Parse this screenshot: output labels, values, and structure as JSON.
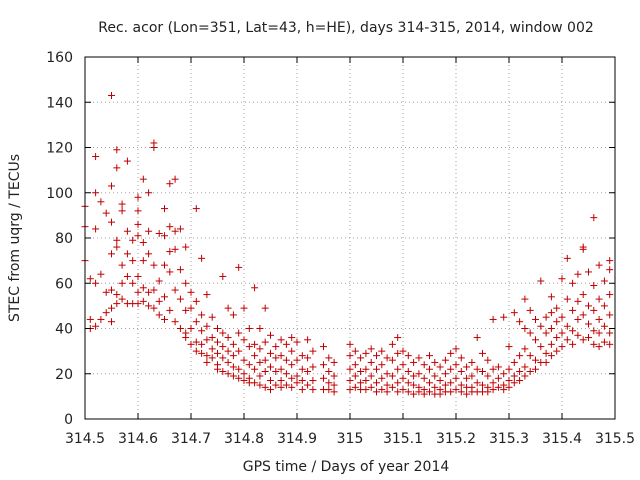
{
  "chart_data": {
    "type": "scatter",
    "title": "Rec. acor (Lon=351, Lat=43, h=HE), days 314-315, 2014, window 002",
    "xlabel": "GPS time / Days of year 2014",
    "ylabel": "STEC from uqrg / TECUs",
    "xlim": [
      314.5,
      315.5
    ],
    "ylim": [
      0,
      160
    ],
    "xticks": [
      314.5,
      314.6,
      314.7,
      314.8,
      314.9,
      315,
      315.1,
      315.2,
      315.3,
      315.4,
      315.5
    ],
    "xtick_labels": [
      "314.5",
      "314.6",
      "314.7",
      "314.8",
      "314.9",
      "315",
      "315.1",
      "315.2",
      "315.3",
      "315.4",
      "315.5"
    ],
    "yticks": [
      0,
      20,
      40,
      60,
      80,
      100,
      120,
      140,
      160
    ],
    "ytick_labels": [
      "0",
      "20",
      "40",
      "60",
      "80",
      "100",
      "120",
      "140",
      "160"
    ],
    "grid": true,
    "marker": "+",
    "marker_color": "#cc0000",
    "points": [
      [
        314.5,
        94
      ],
      [
        314.5,
        85
      ],
      [
        314.5,
        70
      ],
      [
        314.51,
        62
      ],
      [
        314.51,
        44
      ],
      [
        314.51,
        40
      ],
      [
        314.52,
        116
      ],
      [
        314.52,
        100
      ],
      [
        314.52,
        84
      ],
      [
        314.52,
        60
      ],
      [
        314.52,
        41
      ],
      [
        314.53,
        96
      ],
      [
        314.53,
        64
      ],
      [
        314.53,
        44
      ],
      [
        314.54,
        91
      ],
      [
        314.54,
        56
      ],
      [
        314.54,
        47
      ],
      [
        314.55,
        143
      ],
      [
        314.55,
        103
      ],
      [
        314.55,
        87
      ],
      [
        314.55,
        73
      ],
      [
        314.55,
        57
      ],
      [
        314.55,
        49
      ],
      [
        314.55,
        43
      ],
      [
        314.56,
        119
      ],
      [
        314.56,
        111
      ],
      [
        314.56,
        79
      ],
      [
        314.56,
        76
      ],
      [
        314.56,
        55
      ],
      [
        314.56,
        51
      ],
      [
        314.57,
        95
      ],
      [
        314.57,
        92
      ],
      [
        314.57,
        68
      ],
      [
        314.57,
        60
      ],
      [
        314.57,
        53
      ],
      [
        314.58,
        114
      ],
      [
        314.58,
        83
      ],
      [
        314.58,
        73
      ],
      [
        314.58,
        63
      ],
      [
        314.58,
        51
      ],
      [
        314.59,
        79
      ],
      [
        314.59,
        70
      ],
      [
        314.59,
        60
      ],
      [
        314.59,
        51
      ],
      [
        314.6,
        98
      ],
      [
        314.6,
        92
      ],
      [
        314.6,
        86
      ],
      [
        314.6,
        81
      ],
      [
        314.6,
        63
      ],
      [
        314.6,
        56
      ],
      [
        314.6,
        51
      ],
      [
        314.61,
        106
      ],
      [
        314.61,
        78
      ],
      [
        314.61,
        70
      ],
      [
        314.61,
        58
      ],
      [
        314.61,
        52
      ],
      [
        314.62,
        100
      ],
      [
        314.62,
        83
      ],
      [
        314.62,
        73
      ],
      [
        314.62,
        56
      ],
      [
        314.62,
        50
      ],
      [
        314.63,
        122
      ],
      [
        314.63,
        120
      ],
      [
        314.63,
        68
      ],
      [
        314.63,
        57
      ],
      [
        314.63,
        49
      ],
      [
        314.64,
        82
      ],
      [
        314.64,
        61
      ],
      [
        314.64,
        52
      ],
      [
        314.64,
        46
      ],
      [
        314.65,
        93
      ],
      [
        314.65,
        81
      ],
      [
        314.65,
        68
      ],
      [
        314.65,
        54
      ],
      [
        314.65,
        44
      ],
      [
        314.66,
        104
      ],
      [
        314.66,
        85
      ],
      [
        314.66,
        74
      ],
      [
        314.66,
        65
      ],
      [
        314.66,
        48
      ],
      [
        314.67,
        106
      ],
      [
        314.67,
        83
      ],
      [
        314.67,
        75
      ],
      [
        314.67,
        57
      ],
      [
        314.67,
        43
      ],
      [
        314.68,
        84
      ],
      [
        314.68,
        66
      ],
      [
        314.68,
        53
      ],
      [
        314.68,
        40
      ],
      [
        314.69,
        76
      ],
      [
        314.69,
        60
      ],
      [
        314.69,
        48
      ],
      [
        314.69,
        38
      ],
      [
        314.69,
        36
      ],
      [
        314.7,
        56
      ],
      [
        314.7,
        49
      ],
      [
        314.7,
        40
      ],
      [
        314.7,
        33
      ],
      [
        314.71,
        93
      ],
      [
        314.71,
        52
      ],
      [
        314.71,
        43
      ],
      [
        314.71,
        34
      ],
      [
        314.71,
        30
      ],
      [
        314.72,
        71
      ],
      [
        314.72,
        46
      ],
      [
        314.72,
        39
      ],
      [
        314.72,
        33
      ],
      [
        314.72,
        29
      ],
      [
        314.73,
        55
      ],
      [
        314.73,
        41
      ],
      [
        314.73,
        35
      ],
      [
        314.73,
        28
      ],
      [
        314.73,
        25
      ],
      [
        314.74,
        45
      ],
      [
        314.74,
        36
      ],
      [
        314.74,
        31
      ],
      [
        314.74,
        27
      ],
      [
        314.75,
        40
      ],
      [
        314.75,
        34
      ],
      [
        314.75,
        29
      ],
      [
        314.75,
        24
      ],
      [
        314.75,
        22
      ],
      [
        314.76,
        63
      ],
      [
        314.76,
        38
      ],
      [
        314.76,
        32
      ],
      [
        314.76,
        27
      ],
      [
        314.76,
        21
      ],
      [
        314.77,
        49
      ],
      [
        314.77,
        36
      ],
      [
        314.77,
        30
      ],
      [
        314.77,
        25
      ],
      [
        314.77,
        20
      ],
      [
        314.78,
        46
      ],
      [
        314.78,
        33
      ],
      [
        314.78,
        28
      ],
      [
        314.78,
        23
      ],
      [
        314.78,
        19
      ],
      [
        314.79,
        67
      ],
      [
        314.79,
        38
      ],
      [
        314.79,
        30
      ],
      [
        314.79,
        22
      ],
      [
        314.79,
        18
      ],
      [
        314.8,
        49
      ],
      [
        314.8,
        35
      ],
      [
        314.8,
        26
      ],
      [
        314.8,
        20
      ],
      [
        314.8,
        17
      ],
      [
        314.81,
        40
      ],
      [
        314.81,
        32
      ],
      [
        314.81,
        24
      ],
      [
        314.81,
        18
      ],
      [
        314.81,
        16
      ],
      [
        314.82,
        58
      ],
      [
        314.82,
        33
      ],
      [
        314.82,
        28
      ],
      [
        314.82,
        22
      ],
      [
        314.82,
        16
      ],
      [
        314.83,
        40
      ],
      [
        314.83,
        31
      ],
      [
        314.83,
        25
      ],
      [
        314.83,
        19
      ],
      [
        314.83,
        15
      ],
      [
        314.84,
        49
      ],
      [
        314.84,
        34
      ],
      [
        314.84,
        26
      ],
      [
        314.84,
        21
      ],
      [
        314.84,
        14
      ],
      [
        314.85,
        37
      ],
      [
        314.85,
        29
      ],
      [
        314.85,
        23
      ],
      [
        314.85,
        17
      ],
      [
        314.85,
        13
      ],
      [
        314.86,
        32
      ],
      [
        314.86,
        27
      ],
      [
        314.86,
        21
      ],
      [
        314.86,
        15
      ],
      [
        314.87,
        35
      ],
      [
        314.87,
        28
      ],
      [
        314.87,
        22
      ],
      [
        314.87,
        17
      ],
      [
        314.87,
        14
      ],
      [
        314.88,
        33
      ],
      [
        314.88,
        26
      ],
      [
        314.88,
        20
      ],
      [
        314.88,
        15
      ],
      [
        314.89,
        36
      ],
      [
        314.89,
        30
      ],
      [
        314.89,
        24
      ],
      [
        314.89,
        18
      ],
      [
        314.89,
        14
      ],
      [
        314.9,
        34
      ],
      [
        314.9,
        26
      ],
      [
        314.9,
        19
      ],
      [
        314.9,
        16
      ],
      [
        314.91,
        28
      ],
      [
        314.91,
        22
      ],
      [
        314.91,
        17
      ],
      [
        314.91,
        13
      ],
      [
        314.92,
        35
      ],
      [
        314.92,
        27
      ],
      [
        314.92,
        21
      ],
      [
        314.92,
        15
      ],
      [
        314.93,
        30
      ],
      [
        314.93,
        23
      ],
      [
        314.93,
        17
      ],
      [
        314.93,
        13
      ],
      [
        314.95,
        32
      ],
      [
        314.95,
        24
      ],
      [
        314.95,
        18
      ],
      [
        314.95,
        13
      ],
      [
        314.96,
        27
      ],
      [
        314.96,
        21
      ],
      [
        314.96,
        16
      ],
      [
        314.96,
        13
      ],
      [
        314.97,
        25
      ],
      [
        314.97,
        19
      ],
      [
        314.97,
        15
      ],
      [
        314.97,
        12
      ],
      [
        315.0,
        33
      ],
      [
        315.0,
        28
      ],
      [
        315.0,
        22
      ],
      [
        315.0,
        17
      ],
      [
        315.0,
        13
      ],
      [
        315.01,
        30
      ],
      [
        315.01,
        24
      ],
      [
        315.01,
        19
      ],
      [
        315.01,
        14
      ],
      [
        315.02,
        27
      ],
      [
        315.02,
        21
      ],
      [
        315.02,
        16
      ],
      [
        315.02,
        13
      ],
      [
        315.03,
        29
      ],
      [
        315.03,
        22
      ],
      [
        315.03,
        17
      ],
      [
        315.03,
        13
      ],
      [
        315.04,
        31
      ],
      [
        315.04,
        25
      ],
      [
        315.04,
        19
      ],
      [
        315.04,
        14
      ],
      [
        315.05,
        28
      ],
      [
        315.05,
        22
      ],
      [
        315.05,
        16
      ],
      [
        315.05,
        12
      ],
      [
        315.06,
        30
      ],
      [
        315.06,
        24
      ],
      [
        315.06,
        18
      ],
      [
        315.06,
        13
      ],
      [
        315.07,
        27
      ],
      [
        315.07,
        20
      ],
      [
        315.07,
        15
      ],
      [
        315.07,
        12
      ],
      [
        315.08,
        33
      ],
      [
        315.08,
        26
      ],
      [
        315.08,
        19
      ],
      [
        315.08,
        14
      ],
      [
        315.09,
        36
      ],
      [
        315.09,
        29
      ],
      [
        315.09,
        22
      ],
      [
        315.09,
        16
      ],
      [
        315.09,
        12
      ],
      [
        315.1,
        30
      ],
      [
        315.1,
        24
      ],
      [
        315.1,
        18
      ],
      [
        315.1,
        13
      ],
      [
        315.11,
        28
      ],
      [
        315.11,
        21
      ],
      [
        315.11,
        16
      ],
      [
        315.11,
        12
      ],
      [
        315.12,
        25
      ],
      [
        315.12,
        19
      ],
      [
        315.12,
        15
      ],
      [
        315.12,
        11
      ],
      [
        315.13,
        27
      ],
      [
        315.13,
        20
      ],
      [
        315.13,
        14
      ],
      [
        315.13,
        12
      ],
      [
        315.14,
        24
      ],
      [
        315.14,
        18
      ],
      [
        315.14,
        13
      ],
      [
        315.14,
        11
      ],
      [
        315.15,
        28
      ],
      [
        315.15,
        22
      ],
      [
        315.15,
        16
      ],
      [
        315.15,
        12
      ],
      [
        315.16,
        25
      ],
      [
        315.16,
        19
      ],
      [
        315.16,
        14
      ],
      [
        315.16,
        11
      ],
      [
        315.17,
        23
      ],
      [
        315.17,
        17
      ],
      [
        315.17,
        13
      ],
      [
        315.17,
        11
      ],
      [
        315.18,
        26
      ],
      [
        315.18,
        20
      ],
      [
        315.18,
        15
      ],
      [
        315.18,
        12
      ],
      [
        315.19,
        29
      ],
      [
        315.19,
        22
      ],
      [
        315.19,
        16
      ],
      [
        315.19,
        12
      ],
      [
        315.2,
        31
      ],
      [
        315.2,
        24
      ],
      [
        315.2,
        18
      ],
      [
        315.2,
        13
      ],
      [
        315.21,
        27
      ],
      [
        315.21,
        21
      ],
      [
        315.21,
        15
      ],
      [
        315.21,
        12
      ],
      [
        315.22,
        23
      ],
      [
        315.22,
        18
      ],
      [
        315.22,
        14
      ],
      [
        315.22,
        11
      ],
      [
        315.23,
        25
      ],
      [
        315.23,
        19
      ],
      [
        315.23,
        14
      ],
      [
        315.23,
        12
      ],
      [
        315.24,
        36
      ],
      [
        315.24,
        22
      ],
      [
        315.24,
        16
      ],
      [
        315.24,
        12
      ],
      [
        315.25,
        29
      ],
      [
        315.25,
        21
      ],
      [
        315.25,
        15
      ],
      [
        315.25,
        12
      ],
      [
        315.26,
        26
      ],
      [
        315.26,
        19
      ],
      [
        315.26,
        14
      ],
      [
        315.26,
        12
      ],
      [
        315.27,
        44
      ],
      [
        315.27,
        22
      ],
      [
        315.27,
        16
      ],
      [
        315.27,
        13
      ],
      [
        315.28,
        23
      ],
      [
        315.28,
        18
      ],
      [
        315.28,
        14
      ],
      [
        315.29,
        45
      ],
      [
        315.29,
        20
      ],
      [
        315.29,
        15
      ],
      [
        315.29,
        13
      ],
      [
        315.3,
        32
      ],
      [
        315.3,
        22
      ],
      [
        315.3,
        17
      ],
      [
        315.3,
        14
      ],
      [
        315.31,
        47
      ],
      [
        315.31,
        25
      ],
      [
        315.31,
        19
      ],
      [
        315.31,
        16
      ],
      [
        315.32,
        43
      ],
      [
        315.32,
        28
      ],
      [
        315.32,
        21
      ],
      [
        315.32,
        17
      ],
      [
        315.33,
        53
      ],
      [
        315.33,
        40
      ],
      [
        315.33,
        31
      ],
      [
        315.33,
        23
      ],
      [
        315.33,
        19
      ],
      [
        315.34,
        48
      ],
      [
        315.34,
        38
      ],
      [
        315.34,
        28
      ],
      [
        315.34,
        21
      ],
      [
        315.35,
        44
      ],
      [
        315.35,
        35
      ],
      [
        315.35,
        26
      ],
      [
        315.35,
        22
      ],
      [
        315.36,
        61
      ],
      [
        315.36,
        41
      ],
      [
        315.36,
        32
      ],
      [
        315.36,
        25
      ],
      [
        315.37,
        45
      ],
      [
        315.37,
        38
      ],
      [
        315.37,
        29
      ],
      [
        315.37,
        25
      ],
      [
        315.38,
        54
      ],
      [
        315.38,
        47
      ],
      [
        315.38,
        40
      ],
      [
        315.38,
        33
      ],
      [
        315.38,
        28
      ],
      [
        315.39,
        49
      ],
      [
        315.39,
        43
      ],
      [
        315.39,
        36
      ],
      [
        315.39,
        30
      ],
      [
        315.4,
        62
      ],
      [
        315.4,
        45
      ],
      [
        315.4,
        38
      ],
      [
        315.4,
        32
      ],
      [
        315.41,
        71
      ],
      [
        315.41,
        53
      ],
      [
        315.41,
        41
      ],
      [
        315.41,
        35
      ],
      [
        315.42,
        60
      ],
      [
        315.42,
        48
      ],
      [
        315.42,
        39
      ],
      [
        315.42,
        33
      ],
      [
        315.43,
        64
      ],
      [
        315.43,
        52
      ],
      [
        315.43,
        44
      ],
      [
        315.43,
        37
      ],
      [
        315.44,
        76
      ],
      [
        315.44,
        75
      ],
      [
        315.44,
        55
      ],
      [
        315.44,
        46
      ],
      [
        315.44,
        35
      ],
      [
        315.45,
        65
      ],
      [
        315.45,
        50
      ],
      [
        315.45,
        42
      ],
      [
        315.45,
        36
      ],
      [
        315.46,
        89
      ],
      [
        315.46,
        59
      ],
      [
        315.46,
        48
      ],
      [
        315.46,
        39
      ],
      [
        315.46,
        33
      ],
      [
        315.47,
        68
      ],
      [
        315.47,
        53
      ],
      [
        315.47,
        44
      ],
      [
        315.47,
        38
      ],
      [
        315.47,
        32
      ],
      [
        315.48,
        61
      ],
      [
        315.48,
        50
      ],
      [
        315.48,
        41
      ],
      [
        315.48,
        34
      ],
      [
        315.49,
        70
      ],
      [
        315.49,
        66
      ],
      [
        315.49,
        55
      ],
      [
        315.49,
        46
      ],
      [
        315.49,
        38
      ],
      [
        315.49,
        33
      ]
    ]
  }
}
